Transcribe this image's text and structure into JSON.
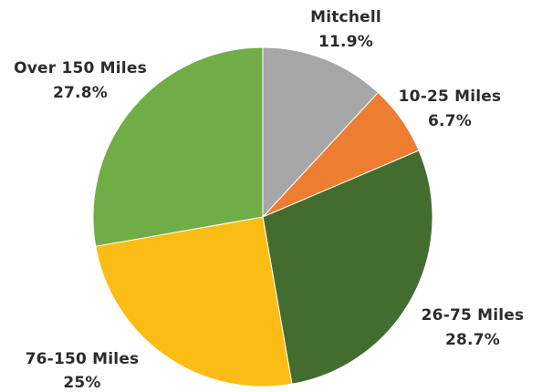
{
  "chart_data": {
    "type": "pie",
    "start_angle_deg": 0,
    "direction": "clockwise",
    "slices": [
      {
        "label": "Mitchell",
        "value_text": "11.9%",
        "value": 11.9,
        "color": "#a6a6a6"
      },
      {
        "label": "10-25 Miles",
        "value_text": "6.7%",
        "value": 6.7,
        "color": "#ed7d31"
      },
      {
        "label": "26-75 Miles",
        "value_text": "28.7%",
        "value": 28.7,
        "color": "#436d2e"
      },
      {
        "label": "76-150 Miles",
        "value_text": "25%",
        "value": 25,
        "color": "#fbbd14"
      },
      {
        "label": "Over 150 Miles",
        "value_text": "27.8%",
        "value": 27.8,
        "color": "#70ad47"
      }
    ]
  }
}
